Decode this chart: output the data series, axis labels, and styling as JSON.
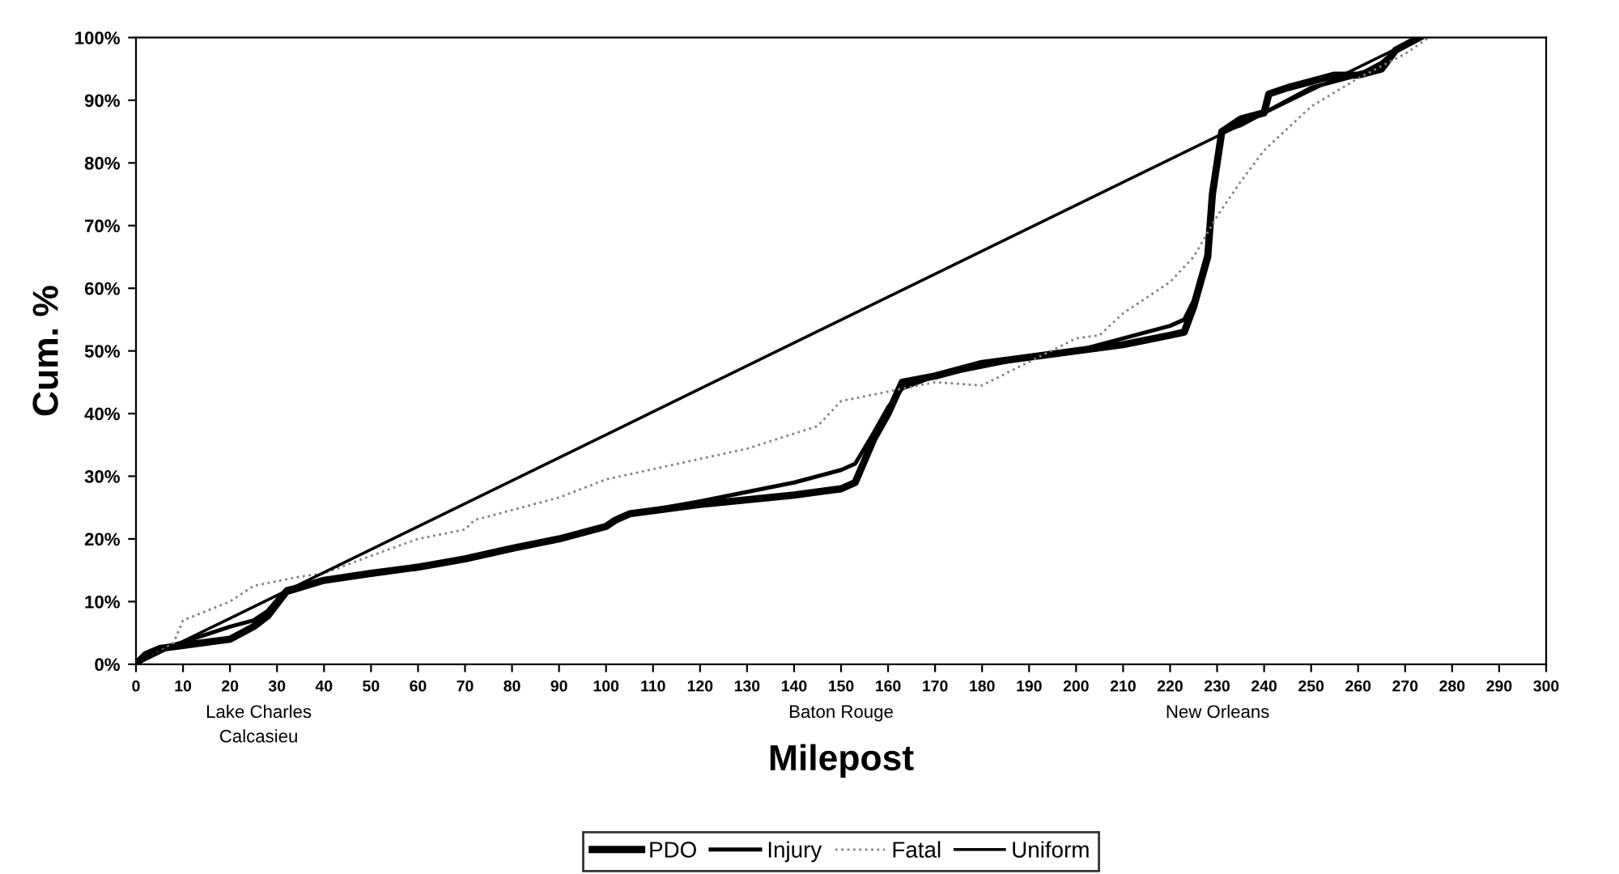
{
  "chart_data": {
    "type": "line",
    "xlabel": "Milepost",
    "ylabel": "Cum. %",
    "xlim": [
      0,
      300
    ],
    "xticks": [
      0,
      10,
      20,
      30,
      40,
      50,
      60,
      70,
      80,
      90,
      100,
      110,
      120,
      130,
      140,
      150,
      160,
      170,
      180,
      190,
      200,
      210,
      220,
      230,
      240,
      250,
      260,
      270,
      280,
      290,
      300
    ],
    "ylim": [
      0,
      100
    ],
    "yticks": [
      {
        "value": 0,
        "label": "0%"
      },
      {
        "value": 10,
        "label": "10%"
      },
      {
        "value": 20,
        "label": "20%"
      },
      {
        "value": 30,
        "label": "30%"
      },
      {
        "value": 40,
        "label": "40%"
      },
      {
        "value": 50,
        "label": "50%"
      },
      {
        "value": 60,
        "label": "60%"
      },
      {
        "value": 70,
        "label": "70%"
      },
      {
        "value": 80,
        "label": "80%"
      },
      {
        "value": 90,
        "label": "90%"
      },
      {
        "value": 100,
        "label": "100%"
      }
    ],
    "grid": false,
    "legend": "bottom",
    "marker": "none",
    "annotations": [
      "Lake Charles\nCalcasieu",
      "Baton Rouge",
      "New Orleans"
    ],
    "series": [
      {
        "name": "PDO",
        "color": "#000000",
        "line_style": "solid",
        "x": [
          0,
          2,
          5,
          10,
          20,
          25,
          28,
          32,
          40,
          50,
          60,
          70,
          80,
          90,
          100,
          102,
          105,
          120,
          140,
          150,
          153,
          157,
          160,
          163,
          170,
          180,
          190,
          200,
          210,
          220,
          223,
          225,
          228,
          229,
          231,
          235,
          240,
          241,
          245,
          250,
          255,
          260,
          265,
          268,
          273
        ],
        "values": [
          0,
          1.5,
          2.5,
          3,
          4,
          6,
          7.7,
          11.6,
          13.4,
          14.5,
          15.5,
          16.8,
          18.5,
          20,
          22,
          23,
          24,
          25.5,
          27,
          28,
          29,
          36,
          40,
          45,
          46,
          48,
          49,
          50,
          51,
          52.5,
          53,
          57,
          65,
          75,
          85,
          87,
          88,
          91,
          92,
          93,
          94,
          94,
          95,
          98,
          100
        ]
      },
      {
        "name": "Injury",
        "color": "#000000",
        "line_style": "solid",
        "x": [
          0,
          2,
          5,
          10,
          20,
          25,
          28,
          32,
          40,
          50,
          60,
          70,
          80,
          90,
          100,
          102,
          105,
          120,
          140,
          150,
          153,
          157,
          160,
          163,
          170,
          180,
          190,
          200,
          210,
          220,
          223,
          225,
          228,
          229,
          231,
          235,
          240,
          245,
          250,
          255,
          260,
          265,
          268,
          273
        ],
        "values": [
          0,
          1.5,
          2.5,
          3.5,
          6,
          7,
          8.5,
          12,
          13.4,
          14.5,
          15.5,
          16.8,
          18.5,
          20,
          22,
          23,
          24,
          26,
          29,
          31,
          32,
          37,
          41,
          44,
          46,
          47.5,
          49,
          50,
          52,
          54,
          55,
          58,
          66,
          76,
          85,
          86,
          88,
          90,
          92,
          93,
          94,
          96,
          98,
          100
        ]
      },
      {
        "name": "Fatal",
        "color": "#808080",
        "line_style": "dotted",
        "x": [
          0,
          5,
          8,
          10,
          20,
          25,
          35,
          40,
          50,
          60,
          70,
          72,
          90,
          100,
          130,
          145,
          150,
          170,
          180,
          200,
          205,
          210,
          220,
          225,
          230,
          235,
          240,
          250,
          260,
          270,
          275
        ],
        "values": [
          0,
          2,
          3.4,
          7,
          10,
          12.5,
          14,
          14.5,
          17.3,
          20,
          21.5,
          23,
          26.6,
          29.5,
          34.4,
          38,
          42,
          45,
          44.5,
          52,
          52.5,
          56,
          61,
          65,
          71.5,
          77,
          82,
          89,
          93.5,
          97.4,
          100
        ]
      },
      {
        "name": "Uniform",
        "color": "#000000",
        "line_style": "solid",
        "x": [
          0,
          273
        ],
        "values": [
          0,
          100
        ]
      }
    ]
  }
}
